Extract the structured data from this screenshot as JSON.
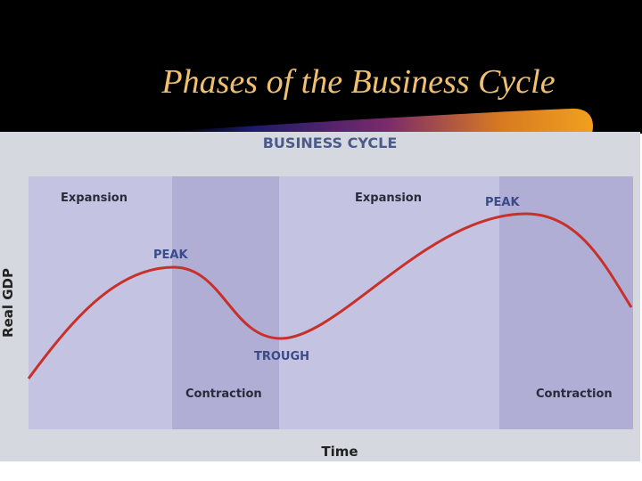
{
  "slide": {
    "title": "Phases of the Business Cycle"
  },
  "figure": {
    "title": "BUSINESS CYCLE",
    "y_label": "Real GDP",
    "x_label": "Time",
    "phases": [
      "Expansion",
      "Contraction",
      "Expansion",
      "Contraction"
    ],
    "points": [
      "PEAK",
      "TROUGH",
      "PEAK"
    ]
  }
}
